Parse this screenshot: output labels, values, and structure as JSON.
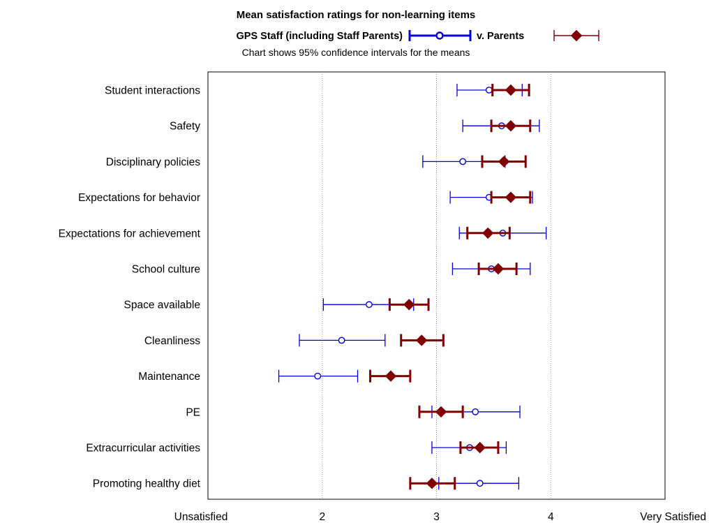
{
  "chart_data": {
    "type": "scatter",
    "title": "Mean satisfaction ratings for non-learning items",
    "subtitle": "Chart shows 95% confidence intervals for the means",
    "orientation": "horizontal",
    "x_range": [
      1,
      5
    ],
    "x_ticks": [
      {
        "value": 1,
        "label": "Unsatisfied"
      },
      {
        "value": 2,
        "label": "2"
      },
      {
        "value": 3,
        "label": "3"
      },
      {
        "value": 4,
        "label": "4"
      },
      {
        "value": 5,
        "label": "Very Satisfied"
      }
    ],
    "gridlines": "vertical dotted at 2, 3, 4",
    "legend_position": "top",
    "categories": [
      "Student interactions",
      "Safety",
      "Disciplinary policies",
      "Expectations for behavior",
      "Expectations for achievement",
      "School culture",
      "Space available",
      "Cleanliness",
      "Maintenance",
      "PE",
      "Extracurricular activities",
      "Promoting healthy diet"
    ],
    "series": [
      {
        "name": "GPS Staff (including Staff Parents)",
        "color": "#0000dd",
        "marker": "open-circle",
        "means": [
          3.46,
          3.57,
          3.23,
          3.46,
          3.58,
          3.48,
          2.41,
          2.17,
          1.96,
          3.34,
          3.29,
          3.38
        ],
        "lower": [
          3.18,
          3.23,
          2.88,
          3.12,
          3.2,
          3.14,
          2.01,
          1.8,
          1.62,
          2.96,
          2.96,
          3.02
        ],
        "upper": [
          3.75,
          3.9,
          3.6,
          3.84,
          3.96,
          3.82,
          2.8,
          2.55,
          2.31,
          3.73,
          3.61,
          3.72
        ]
      },
      {
        "name": "v. Parents",
        "color": "#800000",
        "marker": "filled-diamond",
        "means": [
          3.65,
          3.65,
          3.59,
          3.65,
          3.45,
          3.54,
          2.76,
          2.87,
          2.6,
          3.04,
          3.38,
          2.96
        ],
        "lower": [
          3.49,
          3.48,
          3.4,
          3.48,
          3.27,
          3.37,
          2.59,
          2.69,
          2.42,
          2.85,
          3.21,
          2.77
        ],
        "upper": [
          3.81,
          3.82,
          3.78,
          3.82,
          3.64,
          3.7,
          2.93,
          3.06,
          2.77,
          3.23,
          3.54,
          3.16
        ]
      }
    ]
  }
}
